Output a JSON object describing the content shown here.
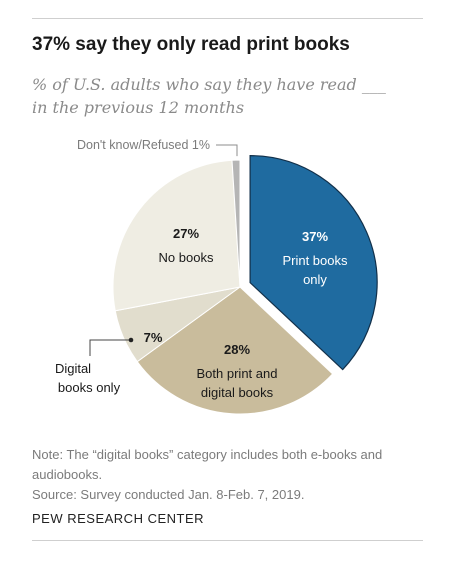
{
  "header": {
    "title": "37% say they only read print books",
    "subtitle_line1": "% of U.S. adults who say they have read ___",
    "subtitle_line2": "in the previous 12 months"
  },
  "chart_data": {
    "type": "pie",
    "title": "37% say they only read print books",
    "subtitle": "% of U.S. adults who say they have read ___ in the previous 12 months",
    "unit": "%",
    "slices": [
      {
        "key": "print",
        "label": "Print books only",
        "label_lines": [
          "Print books",
          "only"
        ],
        "value": 37,
        "display": "37%",
        "color": "#1f6ba0",
        "text_color": "#ffffff",
        "exploded": true
      },
      {
        "key": "both",
        "label": "Both print and digital books",
        "label_lines": [
          "Both print and",
          "digital books"
        ],
        "value": 28,
        "display": "28%",
        "color": "#c9bc9c",
        "text_color": "#1a1a1a"
      },
      {
        "key": "digital",
        "label": "Digital books only",
        "label_lines": [
          "Digital",
          "books only"
        ],
        "value": 7,
        "display": "7%",
        "color": "#e1ddcd",
        "text_color": "#1a1a1a"
      },
      {
        "key": "none",
        "label": "No books",
        "label_lines": [
          "No books"
        ],
        "value": 27,
        "display": "27%",
        "color": "#efede3",
        "text_color": "#1a1a1a"
      },
      {
        "key": "dk",
        "label": "Don't know/Refused",
        "label_lines": [
          "Don't know/Refused"
        ],
        "value": 1,
        "display": "1%",
        "color": "#b5b5b5",
        "text_color": "#7b7b7b"
      }
    ]
  },
  "footer": {
    "note_line1": "Note: The “digital books” category includes both e-books and",
    "note_line2": "audiobooks.",
    "source": "Source: Survey conducted Jan. 8-Feb. 7, 2019.",
    "brand": "PEW RESEARCH CENTER"
  }
}
